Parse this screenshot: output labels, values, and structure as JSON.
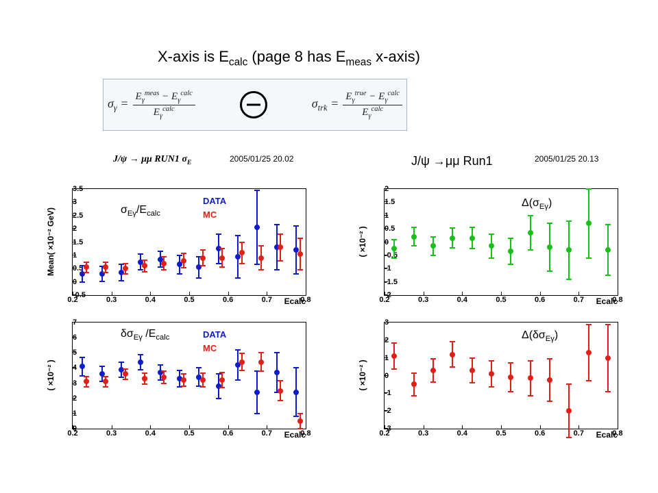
{
  "title_parts": [
    "X-axis is E",
    "calc",
    "  (page 8 has E",
    "meas",
    " x-axis)"
  ],
  "formula": {
    "sigma_gamma_lhs": "σ<sub>γ</sub> =",
    "sigma_gamma_num": "E<sub>γ</sub><sup>meas</sup> − E<sub>γ</sub><sup>calc</sup>",
    "sigma_gamma_den": "E<sub>γ</sub><sup>calc</sup>",
    "sigma_trk_lhs": "σ<sub>trk</sub> =",
    "sigma_trk_num": "E<sub>γ</sub><sup>true</sup> − E<sub>γ</sub><sup>calc</sup>",
    "sigma_trk_den": "E<sub>γ</sub><sup>calc</sup>"
  },
  "headers": {
    "leftImg": "J/ψ → μμ  RUN1  σ<sub>E</sub>",
    "leftTs": "2005/01/25   20.02",
    "rightLbl": "J/ψ →μμ Run1",
    "rightTs": "2005/01/25   20.13"
  },
  "colors": {
    "data": "#0d1cc9",
    "mc": "#e02018",
    "green": "#18c018",
    "red": "#e02018",
    "axis": "#000000",
    "bg": "#ffffff"
  },
  "legend": {
    "data": "DATA",
    "mc": "MC"
  },
  "xaxis": {
    "lo": 0.2,
    "hi": 0.8,
    "ticks": [
      0.2,
      0.3,
      0.4,
      0.5,
      0.6,
      0.7,
      0.8
    ],
    "label": "Ecalc"
  },
  "panels": {
    "tl": {
      "ylo": -0.5,
      "yhi": 3.5,
      "yticks": [
        -0.5,
        0,
        0.5,
        1,
        1.5,
        2,
        2.5,
        3,
        3.5
      ],
      "ylabel": "Mean( ×10⁻² GeV)",
      "plotLabel": "σ<sub>Eγ</sub>/E<sub>calc</sub>",
      "series": [
        {
          "color": "#0d1cc9",
          "name": "DATA",
          "points": [
            {
              "x": 0.225,
              "y": 0.3,
              "e": 0.3
            },
            {
              "x": 0.275,
              "y": 0.3,
              "e": 0.28
            },
            {
              "x": 0.325,
              "y": 0.35,
              "e": 0.3
            },
            {
              "x": 0.375,
              "y": 0.75,
              "e": 0.3
            },
            {
              "x": 0.425,
              "y": 0.85,
              "e": 0.3
            },
            {
              "x": 0.475,
              "y": 0.65,
              "e": 0.35
            },
            {
              "x": 0.525,
              "y": 0.55,
              "e": 0.4
            },
            {
              "x": 0.575,
              "y": 1.25,
              "e": 0.55
            },
            {
              "x": 0.625,
              "y": 0.95,
              "e": 0.8
            },
            {
              "x": 0.675,
              "y": 2.05,
              "e": 1.4
            },
            {
              "x": 0.725,
              "y": 1.3,
              "e": 0.85
            },
            {
              "x": 0.775,
              "y": 1.2,
              "e": 0.9
            }
          ]
        },
        {
          "color": "#e02018",
          "name": "MC",
          "points": [
            {
              "x": 0.235,
              "y": 0.55,
              "e": 0.2
            },
            {
              "x": 0.285,
              "y": 0.55,
              "e": 0.2
            },
            {
              "x": 0.335,
              "y": 0.5,
              "e": 0.2
            },
            {
              "x": 0.385,
              "y": 0.6,
              "e": 0.22
            },
            {
              "x": 0.435,
              "y": 0.7,
              "e": 0.25
            },
            {
              "x": 0.485,
              "y": 0.8,
              "e": 0.28
            },
            {
              "x": 0.535,
              "y": 0.9,
              "e": 0.3
            },
            {
              "x": 0.585,
              "y": 0.9,
              "e": 0.35
            },
            {
              "x": 0.635,
              "y": 1.1,
              "e": 0.4
            },
            {
              "x": 0.685,
              "y": 0.9,
              "e": 0.45
            },
            {
              "x": 0.735,
              "y": 1.3,
              "e": 0.5
            },
            {
              "x": 0.785,
              "y": 1.05,
              "e": 0.6
            }
          ]
        }
      ]
    },
    "bl": {
      "ylo": 0,
      "yhi": 7,
      "yticks": [
        0,
        1,
        2,
        3,
        4,
        5,
        6,
        7
      ],
      "ylabel": "( ×10⁻² )",
      "plotLabel": "δσ<sub>Eγ</sub> /E<sub>calc</sub>",
      "series": [
        {
          "color": "#0d1cc9",
          "name": "DATA",
          "points": [
            {
              "x": 0.225,
              "y": 4.1,
              "e": 0.6
            },
            {
              "x": 0.275,
              "y": 3.6,
              "e": 0.5
            },
            {
              "x": 0.325,
              "y": 3.9,
              "e": 0.5
            },
            {
              "x": 0.375,
              "y": 4.4,
              "e": 0.5
            },
            {
              "x": 0.425,
              "y": 3.7,
              "e": 0.5
            },
            {
              "x": 0.475,
              "y": 3.3,
              "e": 0.55
            },
            {
              "x": 0.525,
              "y": 3.4,
              "e": 0.6
            },
            {
              "x": 0.575,
              "y": 2.8,
              "e": 0.8
            },
            {
              "x": 0.625,
              "y": 4.2,
              "e": 1.0
            },
            {
              "x": 0.675,
              "y": 2.4,
              "e": 1.4
            },
            {
              "x": 0.725,
              "y": 3.7,
              "e": 1.3
            },
            {
              "x": 0.775,
              "y": 2.4,
              "e": 1.6
            }
          ]
        },
        {
          "color": "#e02018",
          "name": "MC",
          "points": [
            {
              "x": 0.235,
              "y": 3.1,
              "e": 0.35
            },
            {
              "x": 0.285,
              "y": 3.1,
              "e": 0.35
            },
            {
              "x": 0.335,
              "y": 3.6,
              "e": 0.35
            },
            {
              "x": 0.385,
              "y": 3.3,
              "e": 0.35
            },
            {
              "x": 0.435,
              "y": 3.4,
              "e": 0.4
            },
            {
              "x": 0.485,
              "y": 3.2,
              "e": 0.4
            },
            {
              "x": 0.535,
              "y": 3.2,
              "e": 0.45
            },
            {
              "x": 0.585,
              "y": 3.2,
              "e": 0.5
            },
            {
              "x": 0.635,
              "y": 4.4,
              "e": 0.55
            },
            {
              "x": 0.685,
              "y": 4.4,
              "e": 0.6
            },
            {
              "x": 0.735,
              "y": 2.5,
              "e": 0.65
            },
            {
              "x": 0.785,
              "y": 0.5,
              "e": 0.5
            }
          ]
        }
      ]
    },
    "tr": {
      "ylo": -2,
      "yhi": 2,
      "yticks": [
        -2,
        -1.5,
        -1,
        -0.5,
        0,
        0.5,
        1,
        1.5,
        2
      ],
      "ylabel": "( ×10⁻² )",
      "plotLabel": "Δ(σ<sub>Eγ</sub>)",
      "series": [
        {
          "color": "#18c018",
          "name": "delta",
          "points": [
            {
              "x": 0.225,
              "y": -0.25,
              "e": 0.35
            },
            {
              "x": 0.275,
              "y": 0.2,
              "e": 0.35
            },
            {
              "x": 0.325,
              "y": -0.15,
              "e": 0.35
            },
            {
              "x": 0.375,
              "y": 0.15,
              "e": 0.38
            },
            {
              "x": 0.425,
              "y": 0.15,
              "e": 0.4
            },
            {
              "x": 0.475,
              "y": -0.15,
              "e": 0.45
            },
            {
              "x": 0.525,
              "y": -0.35,
              "e": 0.5
            },
            {
              "x": 0.575,
              "y": 0.35,
              "e": 0.65
            },
            {
              "x": 0.625,
              "y": -0.2,
              "e": 0.9
            },
            {
              "x": 0.675,
              "y": -0.3,
              "e": 1.1
            },
            {
              "x": 0.725,
              "y": 0.7,
              "e": 1.3
            },
            {
              "x": 0.775,
              "y": -0.3,
              "e": 0.95
            }
          ]
        }
      ]
    },
    "br": {
      "ylo": -3,
      "yhi": 3,
      "yticks": [
        -3,
        -2,
        -1,
        0,
        1,
        2,
        3
      ],
      "ylabel": "( ×10⁻² )",
      "plotLabel": "Δ(δσ<sub>Eγ</sub>)",
      "series": [
        {
          "color": "#e02018",
          "name": "delta",
          "points": [
            {
              "x": 0.225,
              "y": 1.1,
              "e": 0.75
            },
            {
              "x": 0.275,
              "y": -0.5,
              "e": 0.65
            },
            {
              "x": 0.325,
              "y": 0.3,
              "e": 0.65
            },
            {
              "x": 0.375,
              "y": 1.2,
              "e": 0.7
            },
            {
              "x": 0.425,
              "y": 0.3,
              "e": 0.7
            },
            {
              "x": 0.475,
              "y": 0.1,
              "e": 0.75
            },
            {
              "x": 0.525,
              "y": -0.1,
              "e": 0.8
            },
            {
              "x": 0.575,
              "y": -0.15,
              "e": 1.0
            },
            {
              "x": 0.625,
              "y": -0.25,
              "e": 1.2
            },
            {
              "x": 0.675,
              "y": -2.0,
              "e": 1.5
            },
            {
              "x": 0.725,
              "y": 1.3,
              "e": 1.6
            },
            {
              "x": 0.775,
              "y": 1.0,
              "e": 1.9
            }
          ]
        }
      ]
    }
  },
  "layout": {
    "panelW": 340,
    "panelH": 155,
    "leftX": 105,
    "rightX": 560,
    "topY": 275,
    "botY": 470,
    "trY": 275,
    "brY": 470
  }
}
